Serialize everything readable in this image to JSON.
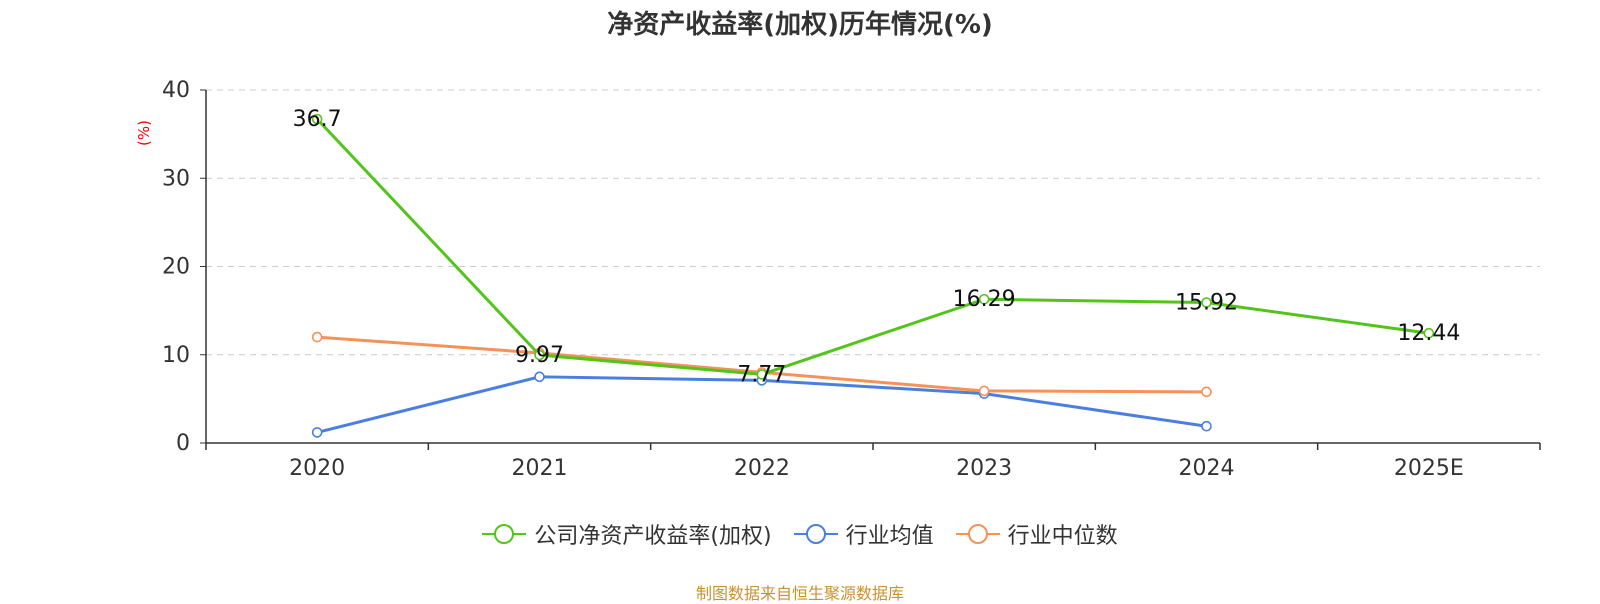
{
  "chart_data": {
    "type": "line",
    "title": "净资产收益率(加权)历年情况(%)",
    "ylabel": "(%)",
    "xlabel": "",
    "ylim": [
      0,
      40
    ],
    "yticks": [
      0,
      10,
      20,
      30,
      40
    ],
    "categories": [
      "2020",
      "2021",
      "2022",
      "2023",
      "2024",
      "2025E"
    ],
    "series": [
      {
        "name": "公司净资产收益率(加权)",
        "color": "#52c41a",
        "values": [
          36.7,
          9.97,
          7.77,
          16.29,
          15.92,
          12.44
        ],
        "labels": [
          "36.7",
          "9.97",
          "7.77",
          "16.29",
          "15.92",
          "12.44"
        ]
      },
      {
        "name": "行业均值",
        "color": "#4a7fe0",
        "values": [
          1.2,
          7.5,
          7.1,
          5.6,
          1.9,
          null
        ]
      },
      {
        "name": "行业中位数",
        "color": "#f59258",
        "values": [
          12.0,
          10.2,
          8.0,
          5.9,
          5.8,
          null
        ]
      }
    ],
    "grid": true,
    "legend_position": "bottom-center"
  },
  "source_text": "制图数据来自恒生聚源数据库"
}
